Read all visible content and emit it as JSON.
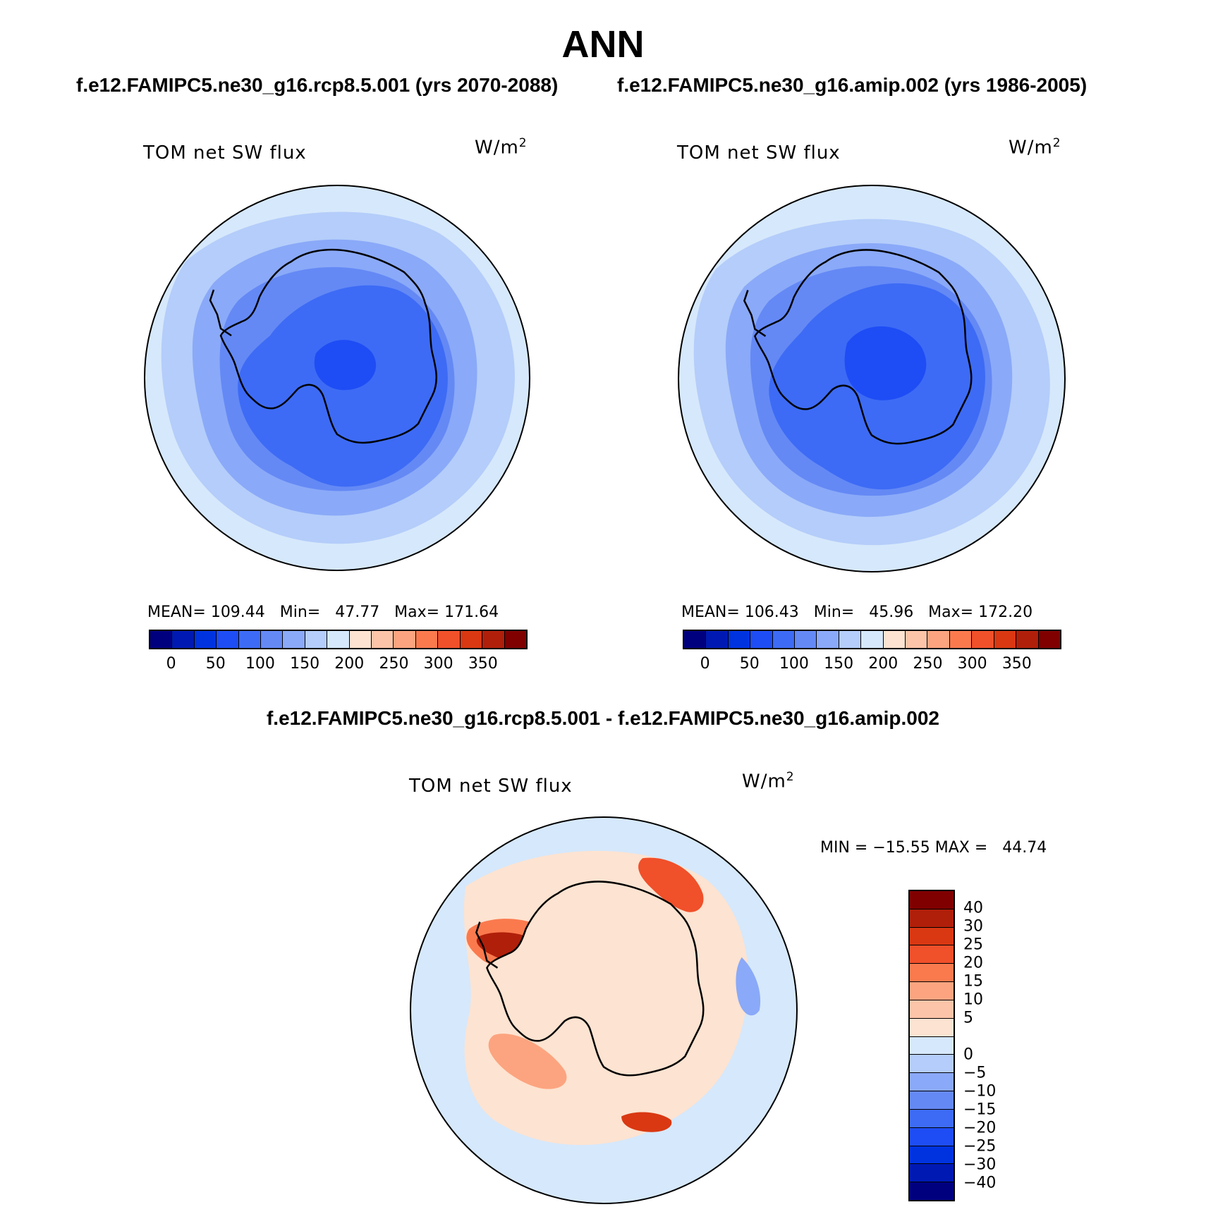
{
  "figure": {
    "title": "ANN",
    "case1_title": "f.e12.FAMIPC5.ne30_g16.rcp8.5.001 (yrs 2070-2088)",
    "case2_title": "f.e12.FAMIPC5.ne30_g16.amip.002 (yrs 1986-2005)",
    "diff_title": "f.e12.FAMIPC5.ne30_g16.rcp8.5.001 - f.e12.FAMIPC5.ne30_g16.amip.002"
  },
  "panel1": {
    "variable": "TOM net SW flux",
    "units_base": "W/m",
    "units_exp": "2",
    "stats": "MEAN= 109.44   Min=   47.77   Max= 171.64"
  },
  "panel2": {
    "variable": "TOM net SW flux",
    "units_base": "W/m",
    "units_exp": "2",
    "stats": "MEAN= 106.43   Min=   45.96   Max= 172.20"
  },
  "panel3": {
    "variable": "TOM net SW flux",
    "units_base": "W/m",
    "units_exp": "2",
    "stats": "MIN = −15.55 MAX =   44.74"
  },
  "colorbar_abs": {
    "colors": [
      "#00007f",
      "#0019b3",
      "#0033e0",
      "#1e4df5",
      "#3d6bf5",
      "#6489f5",
      "#8aa9f8",
      "#b4cdfa",
      "#d6e8fb",
      "#fde3d1",
      "#fcc4a8",
      "#fca47f",
      "#fa7a4e",
      "#f0502a",
      "#d93812",
      "#b01f0a",
      "#800000"
    ],
    "ticks": [
      "0",
      "50",
      "100",
      "150",
      "200",
      "250",
      "300",
      "350"
    ]
  },
  "colorbar_diff": {
    "colors": [
      "#800000",
      "#b01f0a",
      "#d93812",
      "#f0502a",
      "#fa7a4e",
      "#fca47f",
      "#fcc4a8",
      "#fde3d1",
      "#d6e8fb",
      "#b4cdfa",
      "#8aa9f8",
      "#6489f5",
      "#3d6bf5",
      "#1e4df5",
      "#0033e0",
      "#0019b3",
      "#00007f"
    ],
    "ticks": [
      "40",
      "30",
      "25",
      "20",
      "15",
      "10",
      "5",
      "0",
      "−5",
      "−10",
      "−15",
      "−20",
      "−25",
      "−30",
      "−40"
    ]
  }
}
